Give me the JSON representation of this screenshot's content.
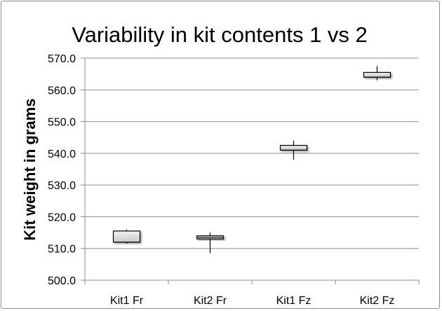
{
  "chart_data": {
    "type": "box",
    "title": "Variability in kit contents 1 vs 2",
    "xlabel": "",
    "ylabel": "Kit weight in grams",
    "ylim": [
      500,
      570
    ],
    "yticks": [
      "500.0",
      "510.0",
      "520.0",
      "530.0",
      "540.0",
      "550.0",
      "560.0",
      "570.0"
    ],
    "grid": true,
    "legend": "none",
    "categories": [
      "Kit1 Fr",
      "Kit2 Fr",
      "Kit1 Fz",
      "Kit2 Fz"
    ],
    "series": [
      {
        "category": "Kit1 Fr",
        "min": 511.5,
        "q1": 512.0,
        "median": 512.0,
        "q3": 515.5,
        "max": 516.0
      },
      {
        "category": "Kit2 Fr",
        "min": 508.5,
        "q1": 513.0,
        "median": 513.5,
        "q3": 514.0,
        "max": 515.0
      },
      {
        "category": "Kit1 Fz",
        "min": 538.0,
        "q1": 541.0,
        "median": 541.0,
        "q3": 542.5,
        "max": 544.0
      },
      {
        "category": "Kit2 Fz",
        "min": 563.0,
        "q1": 564.0,
        "median": 564.0,
        "q3": 565.5,
        "max": 567.5
      }
    ],
    "colors": {
      "box_fill_light": "#f2f2f2",
      "box_fill_dark": "#c8c8c8",
      "stroke": "#000000",
      "grid": "#8c8c8c"
    }
  }
}
